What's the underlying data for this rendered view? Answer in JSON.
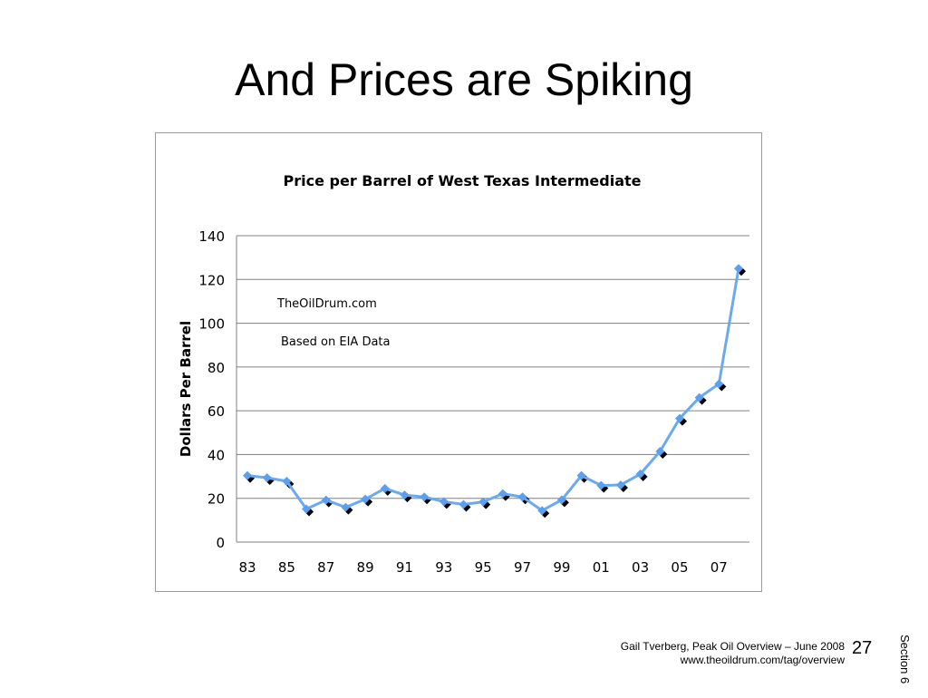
{
  "slide": {
    "title": "And Prices are Spiking",
    "footer_author": "Gail Tverberg, Peak Oil Overview – June 2008",
    "footer_url": "www.theoildrum.com/tag/overview",
    "page_number": "27",
    "section": "Section 6"
  },
  "chart_data": {
    "type": "line",
    "title": "Price per Barrel of West Texas Intermediate",
    "xlabel": "",
    "ylabel": "Dollars Per Barrel",
    "annotations": [
      "TheOilDrum.com",
      "Based on EIA Data"
    ],
    "ylim": [
      0,
      140
    ],
    "yticks": [
      0,
      20,
      40,
      60,
      80,
      100,
      120,
      140
    ],
    "xtick_labels": [
      "83",
      "85",
      "87",
      "89",
      "91",
      "93",
      "95",
      "97",
      "99",
      "01",
      "03",
      "05",
      "07"
    ],
    "grid": true,
    "marker": "diamond",
    "colors": {
      "line": "#6aaaf0",
      "marker": "#5aa0ee",
      "shadow": "#000000",
      "grid": "#808080"
    },
    "x": [
      1983,
      1984,
      1985,
      1986,
      1987,
      1988,
      1989,
      1990,
      1991,
      1992,
      1993,
      1994,
      1995,
      1996,
      1997,
      1998,
      1999,
      2000,
      2001,
      2002,
      2003,
      2004,
      2005,
      2006,
      2007,
      2008
    ],
    "series": [
      {
        "values": [
          30.4,
          29.4,
          27.8,
          15.1,
          19.2,
          15.9,
          19.6,
          24.5,
          21.5,
          20.6,
          18.5,
          17.2,
          18.4,
          22.1,
          20.6,
          14.4,
          19.3,
          30.4,
          25.9,
          26.1,
          31.1,
          41.4,
          56.5,
          66.0,
          72.3,
          125.0
        ]
      }
    ]
  }
}
